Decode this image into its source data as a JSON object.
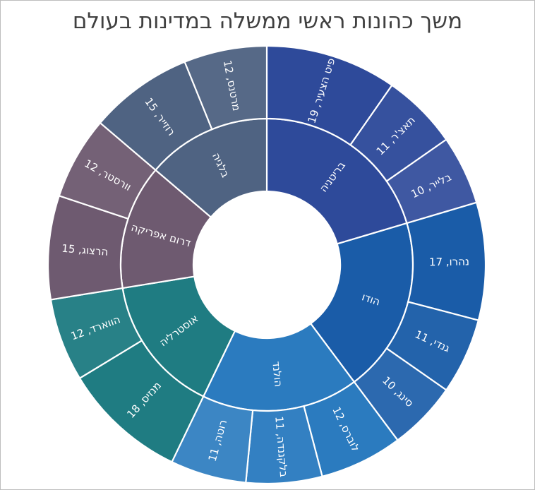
{
  "chart_data": {
    "type": "sunburst",
    "title": "משך כהונות ראשי ממשלה במדינות בעולם",
    "groups": [
      {
        "name": "בריטניה",
        "color": "#2e4a9a",
        "children": [
          {
            "name": "פיט הצעיר",
            "value": 19,
            "label": "פיט הצעיר, 19"
          },
          {
            "name": "תאצ'ר",
            "value": 11,
            "label": "תאצ'ר, 11"
          },
          {
            "name": "בלייר",
            "value": 10,
            "label": "בלייר, 10"
          }
        ]
      },
      {
        "name": "הודו",
        "color": "#1a5ca8",
        "children": [
          {
            "name": "נהרו",
            "value": 17,
            "label": "נהרו, 17"
          },
          {
            "name": "גנדי",
            "value": 11,
            "label": "גנדי, 11"
          },
          {
            "name": "סינג",
            "value": 10,
            "label": "סינג, 10"
          }
        ]
      },
      {
        "name": "הולנד",
        "color": "#2b7bbf",
        "children": [
          {
            "name": "לוברס",
            "value": 12,
            "label": "לוברס, 12"
          },
          {
            "name": "בלקננדה",
            "value": 11,
            "label": "בלקננדה, 11"
          },
          {
            "name": "רוטה",
            "value": 11,
            "label": "רוטה, 11"
          }
        ]
      },
      {
        "name": "אוסטרליה",
        "color": "#1f7c82",
        "children": [
          {
            "name": "מנזיס",
            "value": 18,
            "label": "מנזיס, 18"
          },
          {
            "name": "הווארד",
            "value": 12,
            "label": "הווארד, 12"
          }
        ]
      },
      {
        "name": "דרום אפריקה",
        "color": "#6e5a70",
        "children": [
          {
            "name": "הרצוג",
            "value": 15,
            "label": "הרצוג, 15"
          },
          {
            "name": "וורסטר",
            "value": 12,
            "label": "וורסטר, 12"
          }
        ]
      },
      {
        "name": "בלגיה",
        "color": "#4f6382",
        "children": [
          {
            "name": "רוזייר",
            "value": 15,
            "label": "רוזייר, 15"
          },
          {
            "name": "מרטנס",
            "value": 12,
            "label": "מרטנס, 12"
          }
        ]
      }
    ]
  }
}
